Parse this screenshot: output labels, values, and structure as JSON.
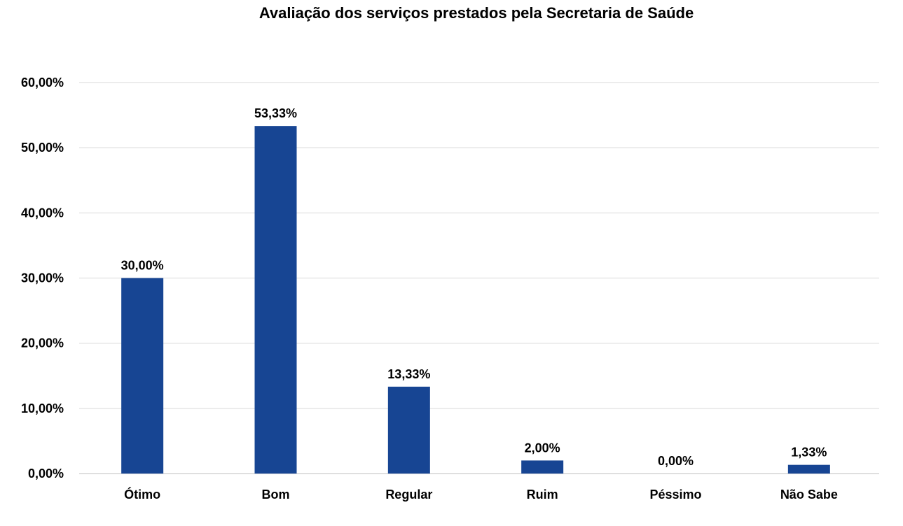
{
  "chart_data": {
    "type": "bar",
    "title": "Avaliação dos serviços prestados pela Secretaria de Saúde",
    "xlabel": "",
    "ylabel": "",
    "categories": [
      "Ótimo",
      "Bom",
      "Regular",
      "Ruim",
      "Péssimo",
      "Não Sabe"
    ],
    "values": [
      30.0,
      53.33,
      13.33,
      2.0,
      0.0,
      1.33
    ],
    "data_labels": [
      "30,00%",
      "53,33%",
      "13,33%",
      "2,00%",
      "0,00%",
      "1,33%"
    ],
    "ylim": [
      0,
      60
    ],
    "yticks": [
      0,
      10,
      20,
      30,
      40,
      50,
      60
    ],
    "ytick_labels": [
      "0,00%",
      "10,00%",
      "20,00%",
      "30,00%",
      "40,00%",
      "50,00%",
      "60,00%"
    ],
    "grid": true,
    "legend": "none",
    "bar_color": "#174593",
    "grid_color": "#d9d9d9"
  }
}
